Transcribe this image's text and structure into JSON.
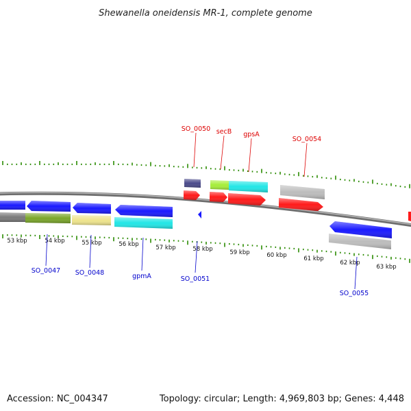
{
  "title": "Shewanella oneidensis MR-1, complete genome",
  "footer": {
    "accession": "Accession: NC_004347",
    "info": "Topology: circular; Length: 4,969,803 bp; Genes: 4,448"
  },
  "colors": {
    "backbone": "#8c8c8c",
    "tick": "#2a8a00",
    "forward_label": "#dd0000",
    "reverse_label": "#0000cc",
    "red": "#ff1a1a",
    "blue": "#1a1aff",
    "cyan": "#22e6e6",
    "grey": "#bdbdbd",
    "olive": "#7aa62a",
    "khaki": "#eee48c",
    "navy": "#4a4a8a",
    "lime": "#a6ee3a",
    "dark_grey": "#7a7a7a"
  },
  "scale": {
    "labels": [
      "53 kbp",
      "54 kbp",
      "55 kbp",
      "56 kbp",
      "57 kbp",
      "58 kbp",
      "59 kbp",
      "60 kbp",
      "61 kbp",
      "62 kbp",
      "63 kbp"
    ]
  },
  "genes_forward": [
    {
      "label": "SO_0050"
    },
    {
      "label": "secB"
    },
    {
      "label": "gpsA"
    },
    {
      "label": "SO_0054"
    }
  ],
  "genes_reverse": [
    {
      "label": "SO_0047"
    },
    {
      "label": "SO_0048"
    },
    {
      "label": "gpmA"
    },
    {
      "label": "SO_0051"
    },
    {
      "label": "SO_0055"
    }
  ]
}
